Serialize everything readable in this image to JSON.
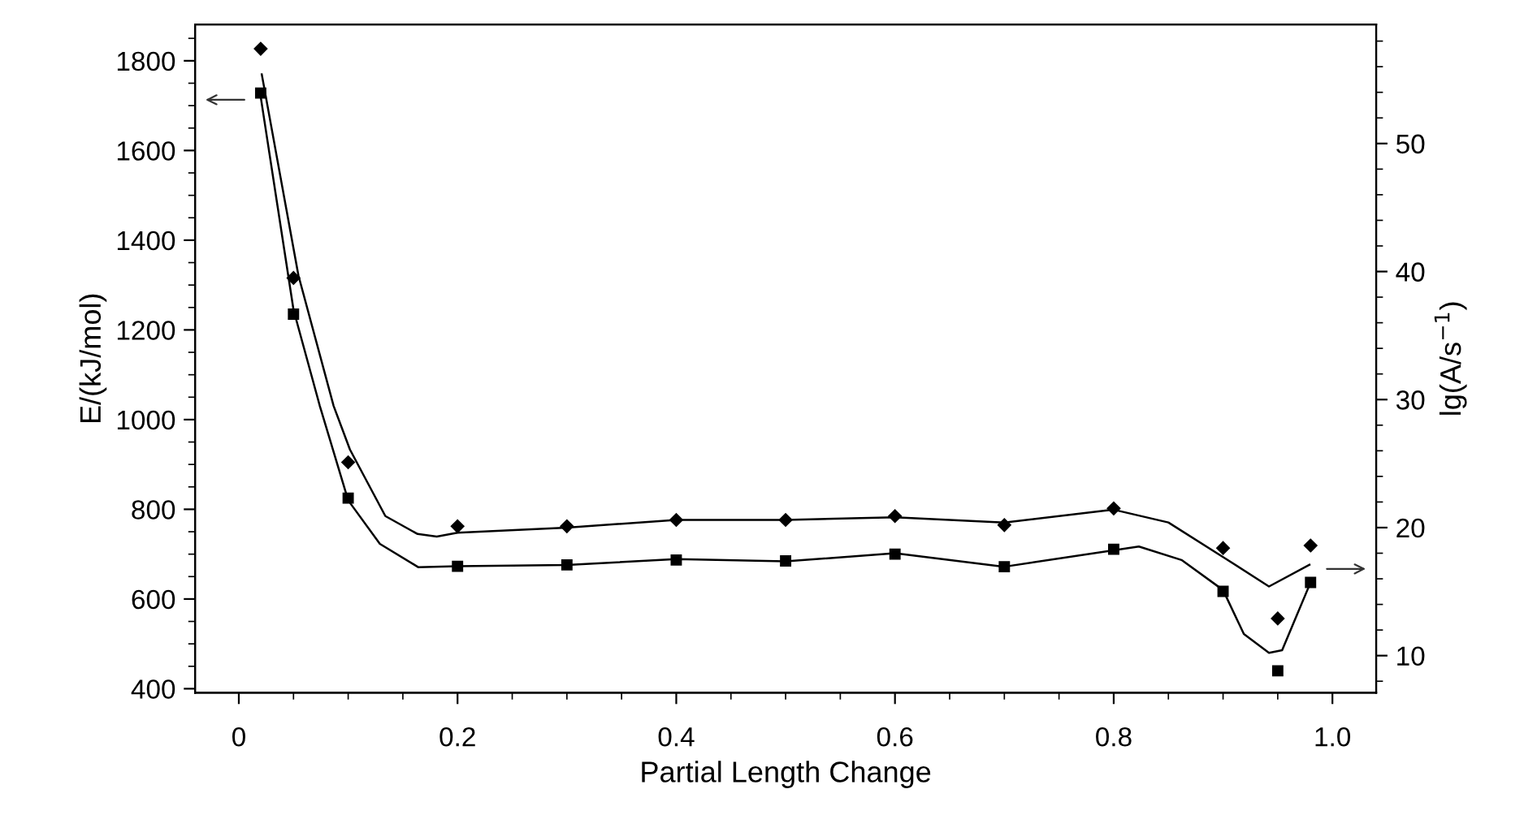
{
  "chart_data": {
    "type": "scatter",
    "xlabel": "Partial Length Change",
    "ylabel": "E/(kJ/mol)",
    "y2label": "lg(A/s$^{−1}$)",
    "xlim": [
      -0.04,
      1.04
    ],
    "xticks": [
      {
        "value": 0,
        "label": "0"
      },
      0.2,
      0.4,
      0.6,
      0.8,
      {
        "value": 1.0,
        "label": "1.0"
      }
    ],
    "ylim": [
      391,
      1881
    ],
    "yticks": [
      400,
      600,
      800,
      1000,
      1200,
      1400,
      1600,
      1800
    ],
    "y2lim": [
      7.1,
      59.3
    ],
    "y2ticks": [
      10,
      20,
      30,
      40,
      50
    ],
    "grid": false,
    "legend": false,
    "x": [
      0.02,
      0.05,
      0.1,
      0.2,
      0.3,
      0.4,
      0.5,
      0.6,
      0.7,
      0.8,
      0.9,
      0.95,
      0.98
    ],
    "series": [
      {
        "marker": "square",
        "color": "#000000",
        "values": [
          1728,
          1235,
          825,
          673,
          676,
          687,
          685,
          700,
          672,
          711,
          617,
          440,
          637
        ]
      },
      {
        "marker": "diamond",
        "axis": "y2",
        "color": "#000000",
        "values": [
          57.4,
          39.5,
          25.1,
          20.1,
          20.1,
          20.6,
          20.6,
          20.9,
          20.2,
          21.5,
          18.4,
          12.9,
          18.6
        ]
      },
      {
        "type": "line",
        "marker": "none",
        "color": "#000000",
        "x": [
          0.02,
          0.05,
          0.074,
          0.1,
          0.129,
          0.164,
          0.2,
          0.3,
          0.4,
          0.5,
          0.6,
          0.7,
          0.823,
          0.862,
          0.9,
          0.919,
          0.942,
          0.954,
          0.979
        ],
        "values": [
          1720,
          1245,
          1031,
          820,
          723,
          671,
          673,
          676,
          689,
          684,
          702,
          672,
          717,
          687,
          620,
          522,
          480,
          486,
          631
        ]
      },
      {
        "type": "line",
        "marker": "none",
        "axis": "y2",
        "color": "#000000",
        "x": [
          0.021,
          0.0545,
          0.0867,
          0.1016,
          0.134,
          0.1635,
          0.181,
          0.2,
          0.3,
          0.4,
          0.5,
          0.6,
          0.7,
          0.8,
          0.85,
          0.9,
          0.942,
          0.979
        ],
        "values": [
          55.4,
          39.7,
          29.5,
          26.1,
          20.9,
          19.5,
          19.3,
          19.6,
          20.0,
          20.6,
          20.6,
          20.8,
          20.4,
          21.4,
          20.4,
          17.7,
          15.4,
          17.1
        ]
      }
    ]
  }
}
